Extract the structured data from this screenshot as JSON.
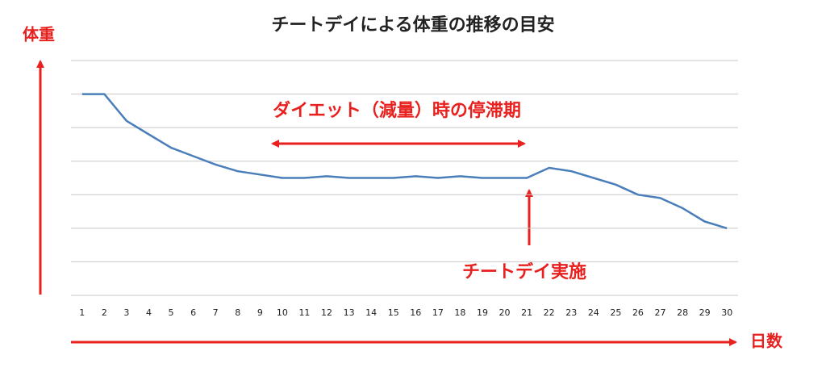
{
  "chart_data": {
    "type": "line",
    "title": "チートデイによる体重の推移の目安",
    "y_label": "体重",
    "x_label": "日数",
    "annotations": [
      "ダイエット（減量）時の停滞期",
      "チートデイ実施"
    ],
    "categories": [
      "1",
      "2",
      "3",
      "4",
      "5",
      "6",
      "7",
      "8",
      "9",
      "10",
      "11",
      "12",
      "13",
      "14",
      "15",
      "16",
      "17",
      "18",
      "19",
      "20",
      "21",
      "22",
      "23",
      "24",
      "25",
      "26",
      "27",
      "28",
      "29",
      "30"
    ],
    "values": [
      6.0,
      6.0,
      5.2,
      4.8,
      4.4,
      4.15,
      3.9,
      3.7,
      3.6,
      3.5,
      3.5,
      3.55,
      3.5,
      3.5,
      3.5,
      3.55,
      3.5,
      3.55,
      3.5,
      3.5,
      3.5,
      3.8,
      3.7,
      3.5,
      3.3,
      3.0,
      2.9,
      2.6,
      2.2,
      2.0
    ],
    "color": "#4a7ebb",
    "ylim": [
      0,
      7
    ],
    "yticks": [
      0,
      1,
      2,
      3,
      4,
      5,
      6,
      7
    ],
    "grid": true,
    "ytick_labels": false
  }
}
